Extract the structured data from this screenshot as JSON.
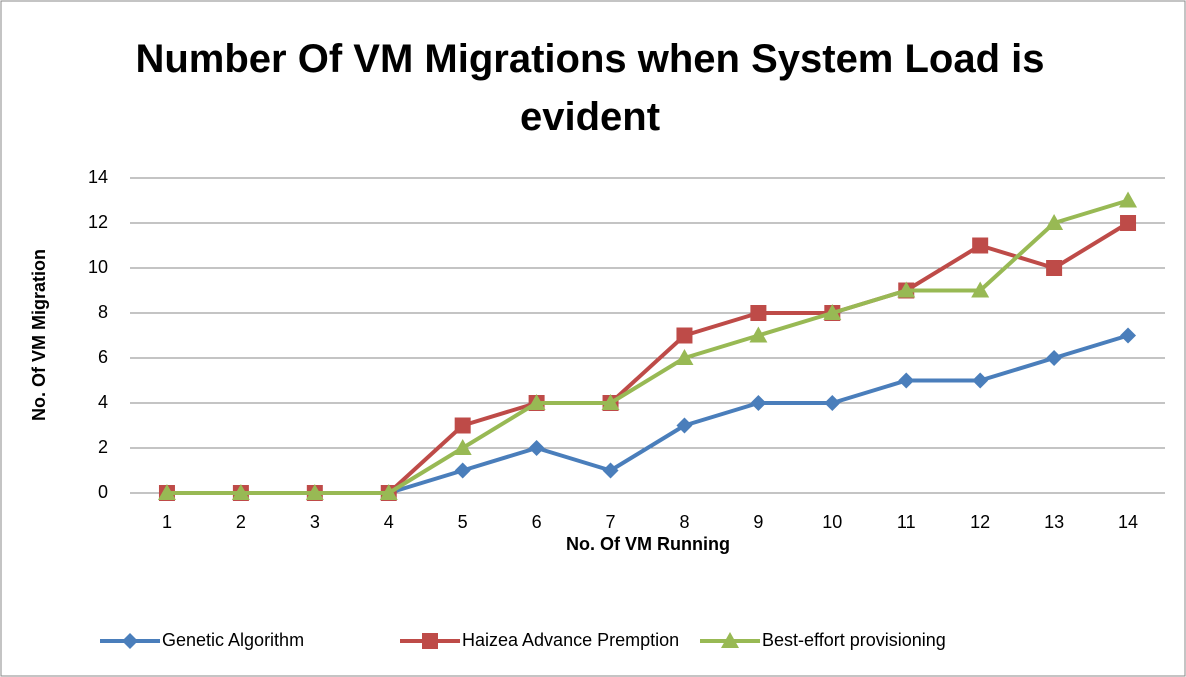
{
  "chart_data": {
    "type": "line",
    "title": "Number Of VM Migrations when System Load is evident",
    "x_label": "No. Of VM Running",
    "y_label": "No. Of VM  Migration",
    "categories": [
      "1",
      "2",
      "3",
      "4",
      "5",
      "6",
      "7",
      "8",
      "9",
      "10",
      "11",
      "12",
      "13",
      "14"
    ],
    "series": [
      {
        "name": "Genetic Algorithm",
        "color": "#4a7ebb",
        "marker": "diamond",
        "values": [
          0,
          0,
          0,
          0,
          1,
          2,
          1,
          3,
          4,
          4,
          5,
          5,
          6,
          7
        ]
      },
      {
        "name": "Haizea Advance Premption",
        "color": "#be4b48",
        "marker": "square",
        "values": [
          0,
          0,
          0,
          0,
          3,
          4,
          4,
          7,
          8,
          8,
          9,
          11,
          10,
          12
        ]
      },
      {
        "name": "Best-effort provisioning",
        "color": "#98b954",
        "marker": "triangle",
        "values": [
          0,
          0,
          0,
          0,
          2,
          4,
          4,
          6,
          7,
          8,
          9,
          9,
          12,
          13
        ]
      }
    ],
    "ylim": [
      0,
      14
    ],
    "yticks": [
      0,
      2,
      4,
      6,
      8,
      10,
      12,
      14
    ],
    "grid": true,
    "legend": "bottom"
  }
}
